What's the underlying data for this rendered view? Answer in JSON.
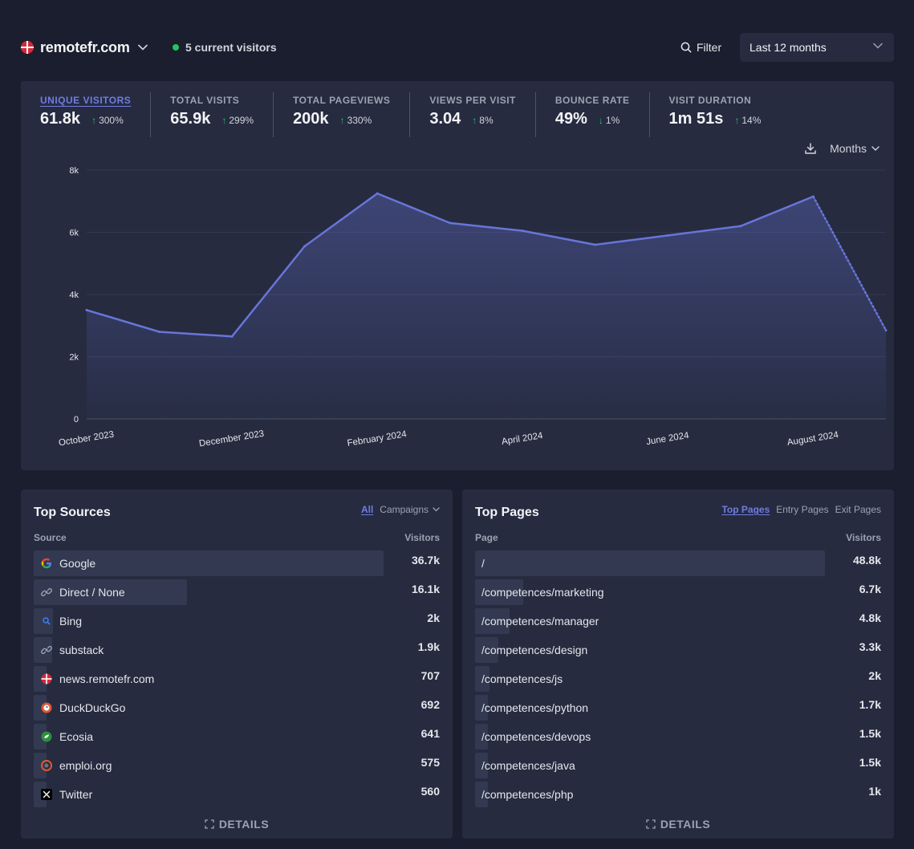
{
  "header": {
    "site_name": "remotefr.com",
    "current_visitors": "5 current visitors",
    "filter_label": "Filter",
    "period_label": "Last 12 months"
  },
  "metrics": [
    {
      "label": "Unique visitors",
      "value": "61.8k",
      "change": "300%",
      "direction": "up"
    },
    {
      "label": "Total visits",
      "value": "65.9k",
      "change": "299%",
      "direction": "up"
    },
    {
      "label": "Total pageviews",
      "value": "200k",
      "change": "330%",
      "direction": "up"
    },
    {
      "label": "Views per visit",
      "value": "3.04",
      "change": "8%",
      "direction": "up"
    },
    {
      "label": "Bounce rate",
      "value": "49%",
      "change": "1%",
      "direction": "down"
    },
    {
      "label": "Visit duration",
      "value": "1m 51s",
      "change": "14%",
      "direction": "up"
    }
  ],
  "chart_controls": {
    "interval_label": "Months"
  },
  "chart_data": {
    "type": "area",
    "title": "Unique visitors",
    "x": [
      "October 2023",
      "November 2023",
      "December 2023",
      "January 2024",
      "February 2024",
      "March 2024",
      "April 2024",
      "May 2024",
      "June 2024",
      "July 2024",
      "August 2024",
      "September 2024"
    ],
    "x_tick_labels": [
      "October 2023",
      "December 2023",
      "February 2024",
      "April 2024",
      "June 2024",
      "August 2024"
    ],
    "values": [
      3500,
      2800,
      2650,
      5550,
      7250,
      6300,
      6050,
      5600,
      5900,
      6200,
      7150,
      2850
    ],
    "y_ticks": [
      "0",
      "2k",
      "4k",
      "6k",
      "8k"
    ],
    "ylim": [
      0,
      8000
    ],
    "partial_last_point": true,
    "line_color": "#6875d8"
  },
  "top_sources": {
    "title": "Top Sources",
    "tab_all": "All",
    "tab_campaigns": "Campaigns",
    "col_source": "Source",
    "col_visitors": "Visitors",
    "details_label": "DETAILS",
    "rows": [
      {
        "label": "Google",
        "value": "36.7k",
        "amount": 36700,
        "icon": "google-icon"
      },
      {
        "label": "Direct / None",
        "value": "16.1k",
        "amount": 16100,
        "icon": "link-icon"
      },
      {
        "label": "Bing",
        "value": "2k",
        "amount": 2000,
        "icon": "bing-icon"
      },
      {
        "label": "substack",
        "value": "1.9k",
        "amount": 1900,
        "icon": "link-icon"
      },
      {
        "label": "news.remotefr.com",
        "value": "707",
        "amount": 707,
        "icon": "remotefr-icon"
      },
      {
        "label": "DuckDuckGo",
        "value": "692",
        "amount": 692,
        "icon": "duckduckgo-icon"
      },
      {
        "label": "Ecosia",
        "value": "641",
        "amount": 641,
        "icon": "ecosia-icon"
      },
      {
        "label": "emploi.org",
        "value": "575",
        "amount": 575,
        "icon": "emploi-icon"
      },
      {
        "label": "Twitter",
        "value": "560",
        "amount": 560,
        "icon": "x-twitter-icon"
      }
    ]
  },
  "top_pages": {
    "title": "Top Pages",
    "tabs": [
      "Top Pages",
      "Entry Pages",
      "Exit Pages"
    ],
    "col_page": "Page",
    "col_visitors": "Visitors",
    "details_label": "DETAILS",
    "rows": [
      {
        "label": "/",
        "value": "48.8k",
        "amount": 48800
      },
      {
        "label": "/competences/marketing",
        "value": "6.7k",
        "amount": 6700
      },
      {
        "label": "/competences/manager",
        "value": "4.8k",
        "amount": 4800
      },
      {
        "label": "/competences/design",
        "value": "3.3k",
        "amount": 3300
      },
      {
        "label": "/competences/js",
        "value": "2k",
        "amount": 2000
      },
      {
        "label": "/competences/python",
        "value": "1.7k",
        "amount": 1700
      },
      {
        "label": "/competences/devops",
        "value": "1.5k",
        "amount": 1500
      },
      {
        "label": "/competences/java",
        "value": "1.5k",
        "amount": 1500
      },
      {
        "label": "/competences/php",
        "value": "1k",
        "amount": 1000
      }
    ]
  }
}
